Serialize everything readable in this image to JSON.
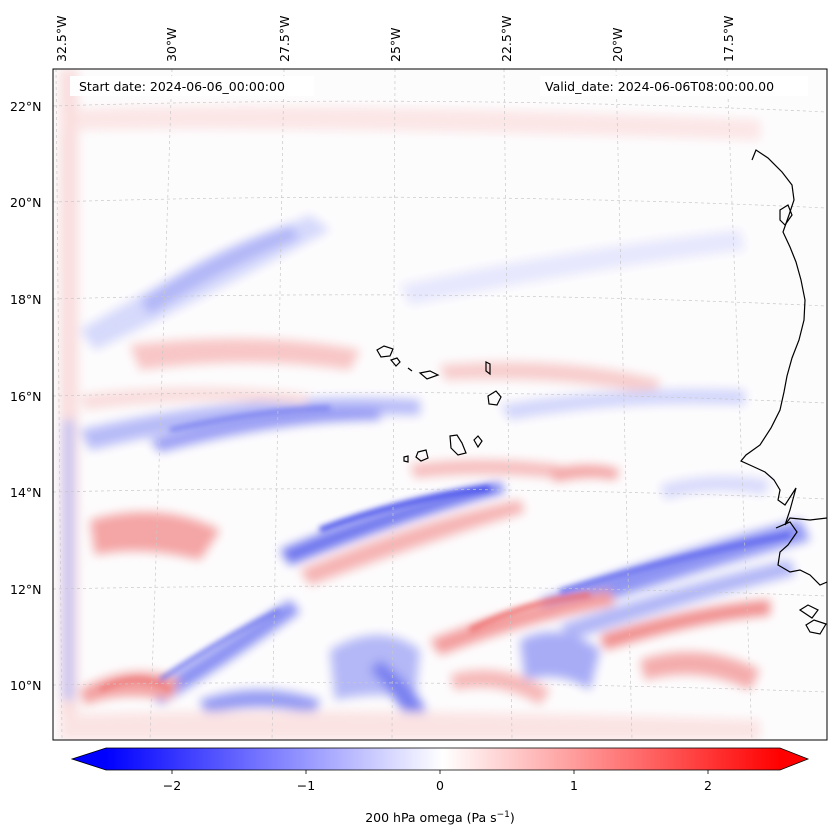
{
  "map": {
    "start_date": "Start date: 2024-06-06_00:00:00",
    "valid_date": "Valid_date: 2024-06-06T08:00:00.00",
    "lon_labels": [
      "32.5°W",
      "30°W",
      "27.5°W",
      "25°W",
      "22.5°W",
      "20°W",
      "17.5°W"
    ],
    "lat_labels": [
      "22°N",
      "20°N",
      "18°N",
      "16°N",
      "14°N",
      "12°N",
      "10°N"
    ],
    "colorbar": {
      "label_main": "200 hPa omega (Pa s",
      "label_sup": "−1",
      "label_close": ")",
      "ticks": [
        "−2",
        "−1",
        "0",
        "1",
        "2"
      ],
      "range": [
        -2.7,
        2.7
      ],
      "colormap": "bwr",
      "extend": "both"
    },
    "colors": {
      "negative": "#0000ff",
      "zero": "#ffffff",
      "positive": "#ff0000",
      "coastline": "#000000",
      "grid": "#c8c8c8"
    }
  }
}
